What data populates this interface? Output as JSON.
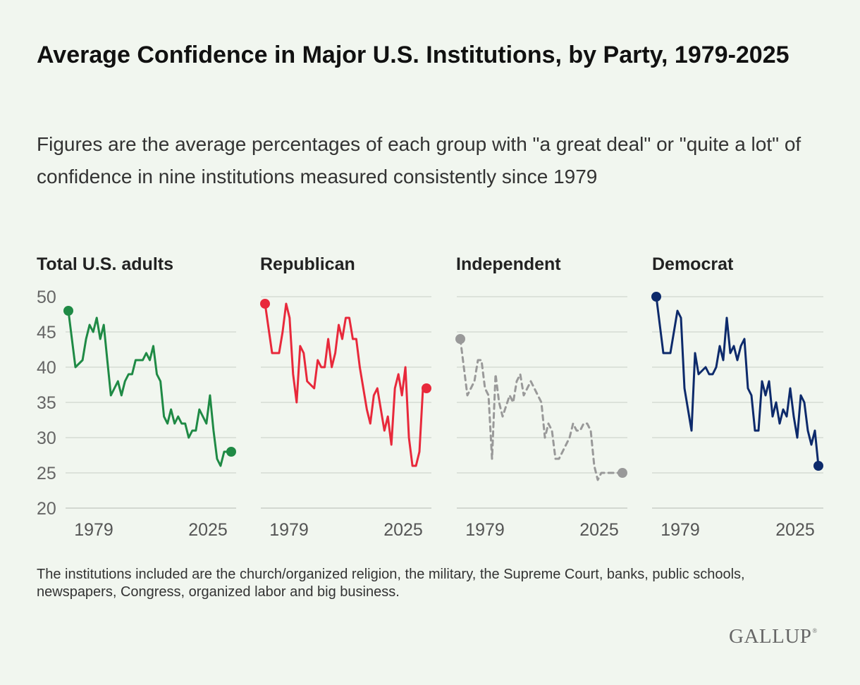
{
  "title": "Average Confidence in Major U.S. Institutions, by Party, 1979-2025",
  "subtitle": "Figures are the average percentages of each group with \"a great deal\" or \"quite a lot\" of confidence in nine institutions measured consistently since 1979",
  "note": "The institutions included are the church/organized religion, the military, the Supreme Court, banks, public schools, newspapers, Congress, organized labor and big business.",
  "logo_text": "GALLUP",
  "logo_mark": "®",
  "chart_data": {
    "type": "line",
    "ylim": [
      20,
      50
    ],
    "yticks": [
      50,
      45,
      40,
      35,
      30,
      25,
      20
    ],
    "xlim": [
      1979,
      2025
    ],
    "x_tick_labels": [
      "1979",
      "2025"
    ],
    "grid": true,
    "x": [
      1979,
      1981,
      1983,
      1984,
      1985,
      1986,
      1987,
      1988,
      1989,
      1990,
      1991,
      1993,
      1994,
      1995,
      1996,
      1997,
      1998,
      1999,
      2000,
      2001,
      2002,
      2003,
      2004,
      2005,
      2006,
      2007,
      2008,
      2009,
      2010,
      2011,
      2012,
      2013,
      2014,
      2015,
      2016,
      2017,
      2018,
      2019,
      2020,
      2021,
      2022,
      2023,
      2024,
      2025
    ],
    "series": [
      {
        "name": "Total U.S. adults",
        "color": "#1f8a45",
        "dashed": false,
        "values": [
          48,
          40,
          41,
          44,
          46,
          45,
          47,
          44,
          46,
          41,
          36,
          38,
          36,
          38,
          39,
          39,
          41,
          41,
          41,
          42,
          41,
          43,
          39,
          38,
          33,
          32,
          34,
          32,
          33,
          32,
          32,
          30,
          31,
          31,
          34,
          33,
          32,
          36,
          31,
          27,
          26,
          28,
          28,
          28
        ]
      },
      {
        "name": "Republican",
        "color": "#e8293b",
        "dashed": false,
        "values": [
          49,
          42,
          42,
          45,
          49,
          47,
          39,
          35,
          43,
          42,
          38,
          37,
          41,
          40,
          40,
          44,
          40,
          42,
          46,
          44,
          47,
          47,
          44,
          44,
          40,
          37,
          34,
          32,
          36,
          37,
          34,
          31,
          33,
          29,
          37,
          39,
          36,
          40,
          30,
          26,
          26,
          28,
          37,
          37
        ]
      },
      {
        "name": "Independent",
        "color": "#999999",
        "dashed": true,
        "values": [
          44,
          36,
          38,
          41,
          41,
          37,
          36,
          27,
          39,
          35,
          33,
          36,
          35,
          38,
          39,
          36,
          37,
          38,
          37,
          36,
          35,
          30,
          32,
          31,
          27,
          27,
          28,
          29,
          30,
          32,
          31,
          31,
          32,
          32,
          31,
          26,
          24,
          25,
          25,
          25,
          25,
          25,
          25,
          25
        ]
      },
      {
        "name": "Democrat",
        "color": "#0d2a6b",
        "dashed": false,
        "values": [
          50,
          42,
          42,
          45,
          48,
          47,
          37,
          34,
          31,
          42,
          39,
          40,
          39,
          39,
          40,
          43,
          41,
          47,
          42,
          43,
          41,
          43,
          44,
          37,
          36,
          31,
          31,
          38,
          36,
          38,
          33,
          35,
          32,
          34,
          33,
          37,
          33,
          30,
          36,
          35,
          31,
          29,
          31,
          26
        ]
      }
    ]
  }
}
